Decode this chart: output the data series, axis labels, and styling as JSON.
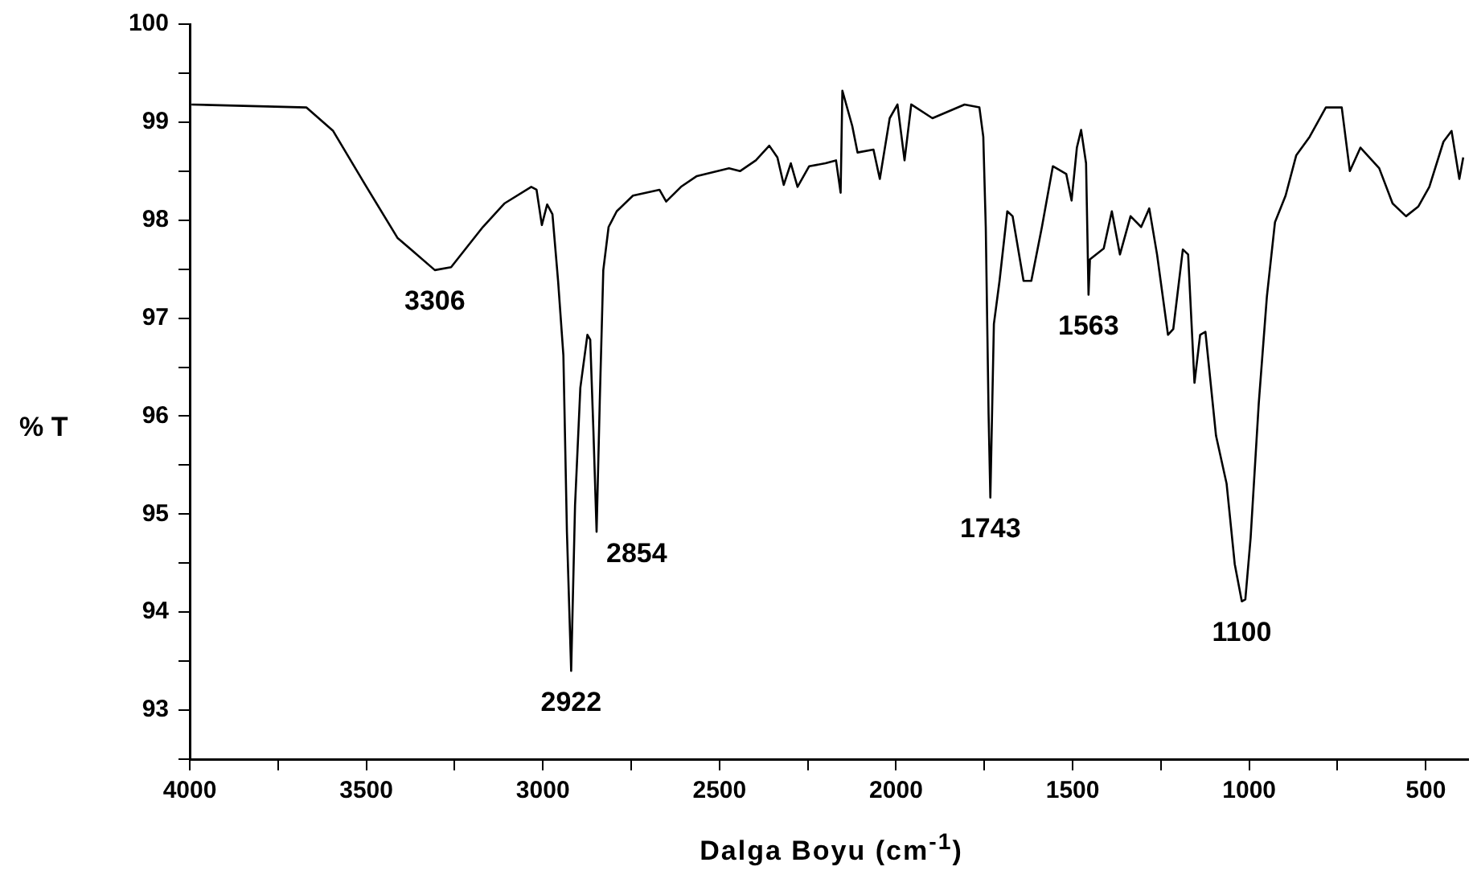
{
  "chart_data": {
    "type": "line",
    "xlabel": "Dalga Boyu (cm$^{-1}$)",
    "ylabel": "% T",
    "x": [
      3995,
      3670,
      3594,
      3503,
      3412,
      3306,
      3260,
      3170,
      3109,
      3033,
      3018,
      3003,
      2988,
      2973,
      2957,
      2942,
      2932,
      2920,
      2909,
      2894,
      2874,
      2866,
      2857,
      2848,
      2839,
      2829,
      2814,
      2791,
      2745,
      2670,
      2651,
      2609,
      2564,
      2473,
      2442,
      2397,
      2359,
      2336,
      2318,
      2298,
      2279,
      2246,
      2200,
      2170,
      2157,
      2152,
      2124,
      2109,
      2064,
      2046,
      2018,
      1996,
      1976,
      1957,
      1897,
      1806,
      1764,
      1753,
      1746,
      1738,
      1733,
      1723,
      1707,
      1685,
      1670,
      1639,
      1617,
      1587,
      1556,
      1518,
      1503,
      1488,
      1476,
      1462,
      1455,
      1451,
      1412,
      1389,
      1366,
      1336,
      1306,
      1283,
      1261,
      1230,
      1215,
      1188,
      1173,
      1155,
      1139,
      1124,
      1094,
      1064,
      1041,
      1021,
      1011,
      996,
      973,
      950,
      927,
      897,
      867,
      829,
      783,
      738,
      715,
      685,
      632,
      594,
      556,
      521,
      490,
      450,
      427,
      405,
      394
    ],
    "series": [
      {
        "color": "#000000",
        "values": [
          99.18,
          99.15,
          98.91,
          98.36,
          97.82,
          97.49,
          97.52,
          97.93,
          98.17,
          98.34,
          98.31,
          97.95,
          98.16,
          98.06,
          97.38,
          96.62,
          94.82,
          93.4,
          95.09,
          96.29,
          96.83,
          96.78,
          95.85,
          94.82,
          96.15,
          97.49,
          97.93,
          98.09,
          98.25,
          98.31,
          98.19,
          98.34,
          98.45,
          98.53,
          98.5,
          98.61,
          98.76,
          98.64,
          98.36,
          98.58,
          98.34,
          98.55,
          98.58,
          98.61,
          98.28,
          99.32,
          98.96,
          98.69,
          98.72,
          98.42,
          99.04,
          99.18,
          98.61,
          99.18,
          99.04,
          99.18,
          99.15,
          98.85,
          97.93,
          96.02,
          95.17,
          96.94,
          97.38,
          98.09,
          98.04,
          97.38,
          97.38,
          97.93,
          98.55,
          98.47,
          98.2,
          98.74,
          98.92,
          98.58,
          97.24,
          97.6,
          97.71,
          98.09,
          97.65,
          98.04,
          97.93,
          98.12,
          97.65,
          96.83,
          96.89,
          97.7,
          97.65,
          96.34,
          96.83,
          96.86,
          95.8,
          95.31,
          94.49,
          94.11,
          94.13,
          94.76,
          96.13,
          97.22,
          97.98,
          98.25,
          98.66,
          98.85,
          99.15,
          99.15,
          98.5,
          98.74,
          98.53,
          98.17,
          98.04,
          98.14,
          98.34,
          98.8,
          98.91,
          98.42,
          98.64
        ]
      }
    ],
    "xlim": [
      4000,
      380
    ],
    "xticks": [
      4000,
      {
        "value": 3750,
        "label": null
      },
      3500,
      {
        "value": 3250,
        "label": null
      },
      3000,
      {
        "value": 2750,
        "label": null
      },
      2500,
      {
        "value": 2250,
        "label": null
      },
      2000,
      {
        "value": 1750,
        "label": null
      },
      1500,
      {
        "value": 1250,
        "label": null
      },
      1000,
      {
        "value": 750,
        "label": null
      },
      500
    ],
    "ylim": [
      92.5,
      100
    ],
    "yticks": [
      {
        "value": 92.5,
        "label": null
      },
      93,
      {
        "value": 93.5,
        "label": null
      },
      94,
      {
        "value": 94.5,
        "label": null
      },
      95,
      {
        "value": 95.5,
        "label": null
      },
      96,
      {
        "value": 96.5,
        "label": null
      },
      97,
      {
        "value": 97.5,
        "label": null
      },
      98,
      {
        "value": 98.5,
        "label": null
      },
      99,
      {
        "value": 99.5,
        "label": null
      },
      100
    ],
    "marker": "none",
    "line_style": "solid",
    "grid": false,
    "legend": false,
    "annotations": [
      {
        "text": "3306",
        "x": 3306,
        "y": 97.49
      },
      {
        "text": "2922",
        "x": 2920,
        "y": 93.4
      },
      {
        "text": "2854",
        "x": 2848,
        "y": 94.82
      },
      {
        "text": "1743",
        "x": 1733,
        "y": 95.17
      },
      {
        "text": "1563",
        "x": 1455,
        "y": 97.24
      },
      {
        "text": "1100",
        "x": 1021,
        "y": 94.11
      }
    ]
  }
}
